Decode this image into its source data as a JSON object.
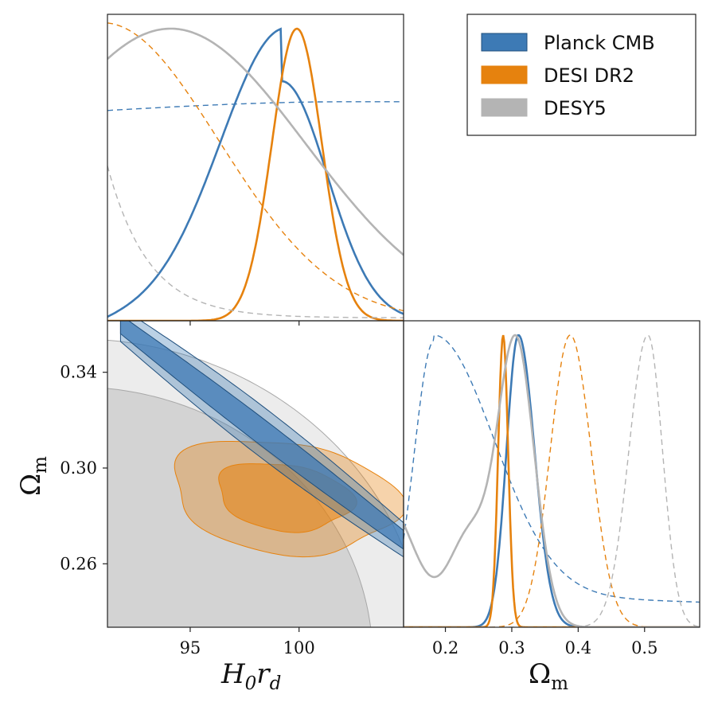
{
  "chart_data": {
    "type": "corner",
    "parameters": [
      {
        "key": "H0rd",
        "label_main": "H",
        "label_sub": "0",
        "label_main2": "r",
        "label_sub2": "d",
        "range": [
          91.2,
          104.8
        ],
        "ticks": [
          95,
          100
        ]
      },
      {
        "key": "Om",
        "label_main": "Ω",
        "label_sub": "m",
        "range_2d": [
          0.2335,
          0.3615
        ],
        "range_1d": [
          0.137,
          0.583
        ],
        "ticks_2d": [
          0.26,
          0.3,
          0.34
        ],
        "ticks_1d": [
          0.2,
          0.3,
          0.4,
          0.5
        ]
      }
    ],
    "series": [
      {
        "name": "Planck CMB",
        "color": "#3d7ab5",
        "H0rd_1d": {
          "solid": {
            "peak": 99.2,
            "sigma_left": 2.8,
            "sigma_right": 2.1,
            "tail_left": 0.18
          },
          "dashed": {
            "shape": "flat",
            "level_left": 0.72,
            "level_right": 0.75
          }
        },
        "Om_1d": {
          "solid": {
            "peak": 0.31,
            "sigma": 0.018
          },
          "dashed": {
            "peak": 0.183,
            "sigma_left": 0.03,
            "sigma_right": 0.09,
            "tail_right": 0.12
          }
        },
        "contour_2d": {
          "direction": "degeneracy",
          "from": [
            91.8,
            0.36
          ],
          "to": [
            104.8,
            0.27
          ],
          "width_68": 0.006,
          "width_95": 0.011
        }
      },
      {
        "name": "DESI DR2",
        "color": "#e6820e",
        "H0rd_1d": {
          "solid": {
            "peak": 99.9,
            "sigma": 1.15
          },
          "dashed": {
            "peak": 91.0,
            "sigma": 5.3
          }
        },
        "Om_1d": {
          "solid": {
            "peak": 0.287,
            "sigma": 0.0075
          },
          "dashed": {
            "peak": 0.388,
            "sigma": 0.03
          }
        },
        "contour_2d": {
          "center": [
            99.3,
            0.288
          ],
          "sigma_H": 2.0,
          "sigma_Om": 0.009,
          "correlation": -0.35
        }
      },
      {
        "name": "DESY5",
        "color": "#b4b4b4",
        "H0rd_1d": {
          "solid": {
            "peak": 94.1,
            "sigma": 6.2
          },
          "dashed": {
            "shape": "decay",
            "start": 0.53,
            "end": 0.01
          }
        },
        "Om_1d": {
          "solid": {
            "peak": 0.305,
            "sigma": 0.026,
            "secondary_min": 0.183,
            "left_level": 0.42
          },
          "dashed": {
            "peak": 0.505,
            "sigma": 0.022
          }
        },
        "contour_2d": {
          "shape": "quarter",
          "radius_68": 0.85,
          "radius_95": 1.0
        }
      }
    ],
    "legend": {
      "placement": "top-right",
      "entries": [
        "Planck CMB",
        "DESI DR2",
        "DESY5"
      ]
    },
    "grid": false
  }
}
